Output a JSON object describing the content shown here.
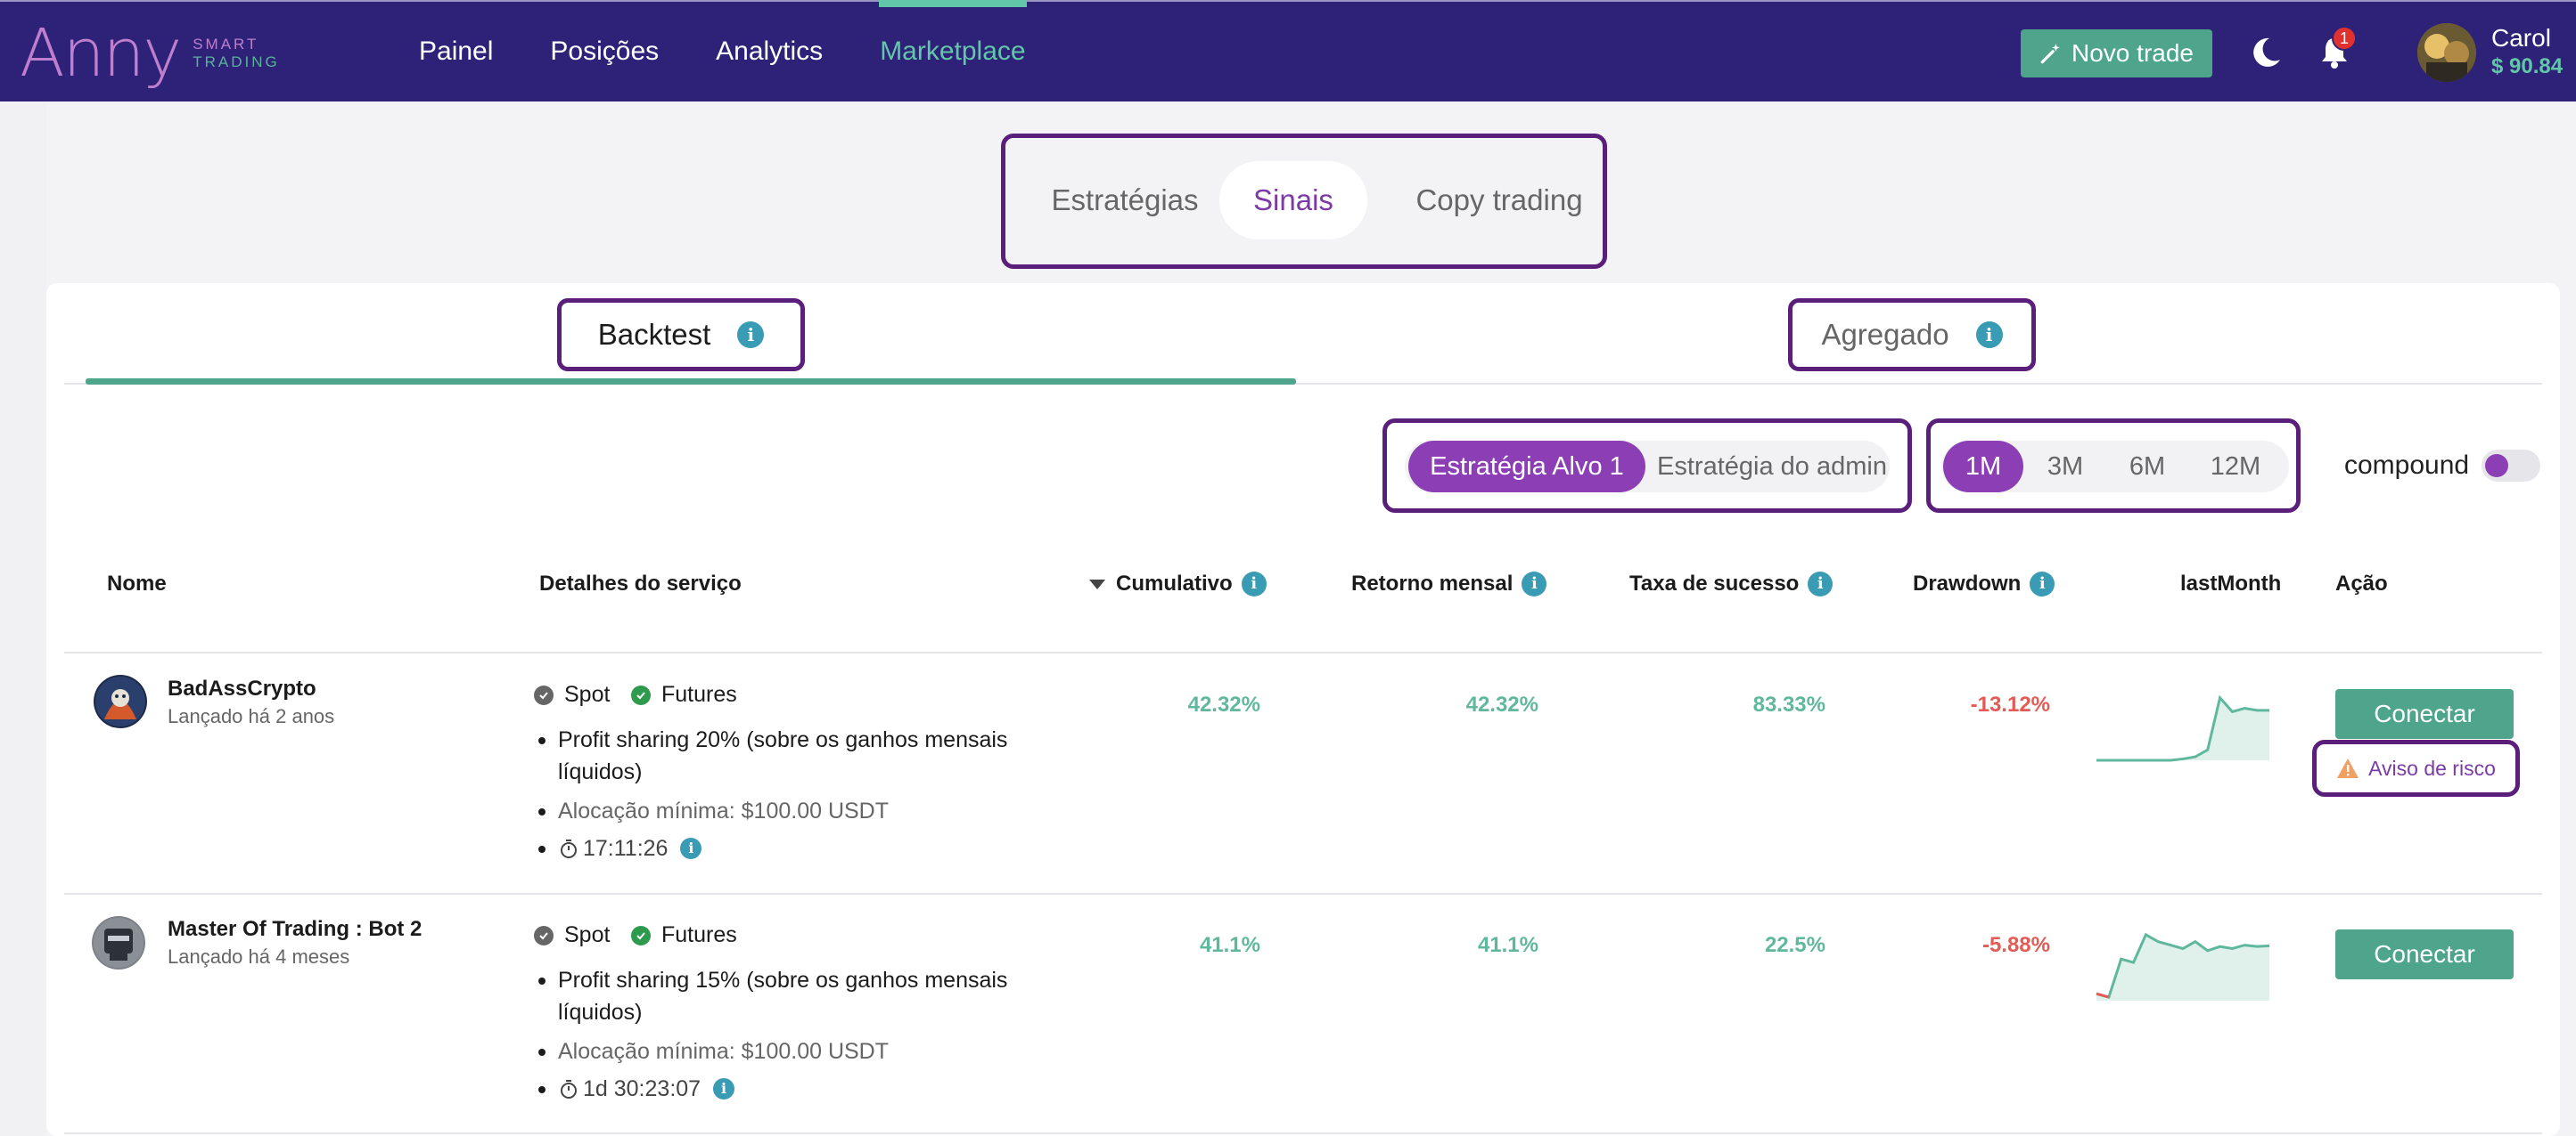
{
  "brand": {
    "name": "Anny",
    "tagline_top": "SMART",
    "tagline_bottom": "TRADING"
  },
  "nav": {
    "links": [
      "Painel",
      "Posições",
      "Analytics",
      "Marketplace"
    ],
    "active": "Marketplace",
    "new_trade": "Novo trade",
    "notifications": "1",
    "user": {
      "name": "Carol",
      "balance": "$ 90.84"
    }
  },
  "main_tabs": {
    "items": [
      "Estratégias",
      "Sinais",
      "Copy trading"
    ],
    "active": "Sinais"
  },
  "sub_tabs": {
    "backtest": "Backtest",
    "aggregate": "Agregado",
    "active": "Backtest"
  },
  "strategy_filter": {
    "items": [
      "Estratégia Alvo 1",
      "Estratégia do admin"
    ],
    "active": "Estratégia Alvo 1"
  },
  "period_filter": {
    "items": [
      "1M",
      "3M",
      "6M",
      "12M"
    ],
    "active": "1M"
  },
  "compound": {
    "label": "compound",
    "enabled": false
  },
  "table": {
    "headers": {
      "name": "Nome",
      "details": "Detalhes do serviço",
      "cumulative": "Cumulativo",
      "monthly": "Retorno mensal",
      "success": "Taxa de sucesso",
      "drawdown": "Drawdown",
      "last_month": "lastMonth",
      "action": "Ação"
    },
    "rows": [
      {
        "name": "BadAssCrypto",
        "launched": "Lançado há 2 anos",
        "markets": [
          "Spot",
          "Futures"
        ],
        "profit_sharing": "Profit sharing 20% (sobre os ganhos mensais",
        "profit_sharing_cont": "líquidos)",
        "min_allocation": "Alocação mínima: $100.00 USDT",
        "timer": "17:11:26",
        "cumulative": "42.32%",
        "monthly": "42.32%",
        "success": "83.33%",
        "drawdown": "-13.12%",
        "action": "Conectar",
        "risk": "Aviso de risco",
        "sparkline": [
          0,
          0,
          0,
          0,
          0,
          0,
          0,
          0.02,
          0.05,
          0.15,
          0.9,
          0.7,
          0.75,
          0.72,
          0.72
        ]
      },
      {
        "name": "Master Of Trading : Bot 2",
        "launched": "Lançado há 4 meses",
        "markets": [
          "Spot",
          "Futures"
        ],
        "profit_sharing": "Profit sharing 15% (sobre os ganhos mensais",
        "profit_sharing_cont": "líquidos)",
        "min_allocation": "Alocação mínima: $100.00 USDT",
        "timer": "1d 30:23:07",
        "cumulative": "41.1%",
        "monthly": "41.1%",
        "success": "22.5%",
        "drawdown": "-5.88%",
        "action": "Conectar",
        "sparkline": [
          0.1,
          0.05,
          0.6,
          0.55,
          0.95,
          0.85,
          0.8,
          0.75,
          0.85,
          0.72,
          0.78,
          0.75,
          0.8,
          0.78,
          0.79
        ]
      }
    ]
  },
  "colors": {
    "navbar": "#2e2278",
    "accent_green": "#4fa48c",
    "accent_purple": "#8c3fb5",
    "positive": "#5fb89d",
    "negative": "#e25b55"
  }
}
